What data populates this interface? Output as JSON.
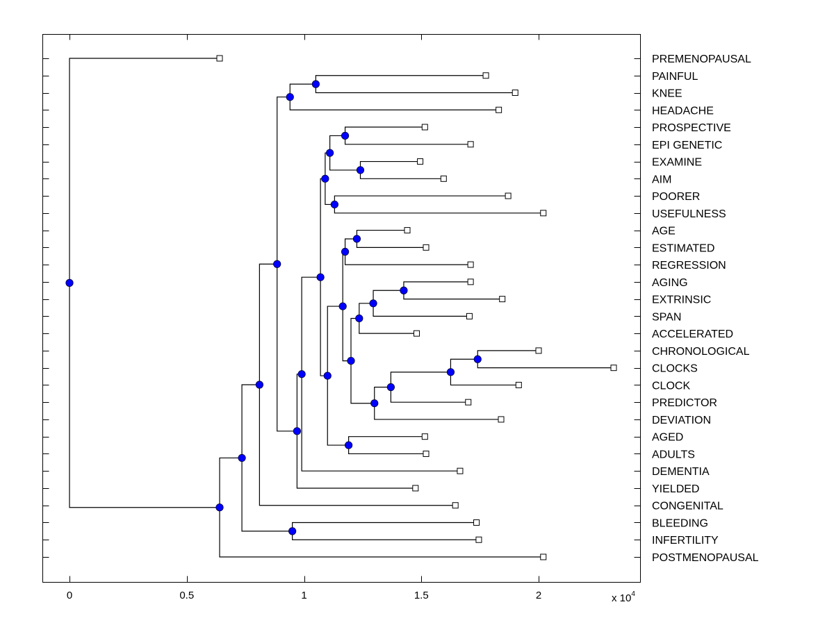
{
  "chart_data": {
    "type": "dendrogram",
    "title": "",
    "xlabel": "",
    "ylabel": "",
    "x_multiplier_label": "x 10",
    "x_multiplier_exponent": "4",
    "xlim": [
      -0.115,
      2.43
    ],
    "xticks": [
      0,
      0.5,
      1,
      1.5,
      2
    ],
    "xtick_labels": [
      "0",
      "0.5",
      "1",
      "1.5",
      "2"
    ],
    "grid": false,
    "internal_node_color": "#0000ff",
    "leaves": [
      {
        "id": "PREMENOPAUSAL",
        "label": "PREMENOPAUSAL",
        "x": 0.64
      },
      {
        "id": "PAINFUL",
        "label": "PAINFUL",
        "x": 1.775
      },
      {
        "id": "KNEE",
        "label": "KNEE",
        "x": 1.9
      },
      {
        "id": "HEADACHE",
        "label": "HEADACHE",
        "x": 1.83
      },
      {
        "id": "PROSPECTIVE",
        "label": "PROSPECTIVE",
        "x": 1.515
      },
      {
        "id": "EPIGENETIC",
        "label": "EPI GENETIC",
        "x": 1.71
      },
      {
        "id": "EXAMINE",
        "label": "EXAMINE",
        "x": 1.495
      },
      {
        "id": "AIM",
        "label": "AIM",
        "x": 1.595
      },
      {
        "id": "POORER",
        "label": "POORER",
        "x": 1.87
      },
      {
        "id": "USEFULNESS",
        "label": "USEFULNESS",
        "x": 2.02
      },
      {
        "id": "AGE",
        "label": "AGE",
        "x": 1.44
      },
      {
        "id": "ESTIMATED",
        "label": "ESTIMATED",
        "x": 1.52
      },
      {
        "id": "REGRESSION",
        "label": "REGRESSION",
        "x": 1.71
      },
      {
        "id": "AGING",
        "label": "AGING",
        "x": 1.71
      },
      {
        "id": "EXTRINSIC",
        "label": "EXTRINSIC",
        "x": 1.845
      },
      {
        "id": "SPAN",
        "label": "SPAN",
        "x": 1.705
      },
      {
        "id": "ACCELERATED",
        "label": "ACCELERATED",
        "x": 1.48
      },
      {
        "id": "CHRONOLOGICAL",
        "label": "CHRONOLOGICAL",
        "x": 2.0
      },
      {
        "id": "CLOCKS",
        "label": "CLOCKS",
        "x": 2.32
      },
      {
        "id": "CLOCK",
        "label": "CLOCK",
        "x": 1.915
      },
      {
        "id": "PREDICTOR",
        "label": "PREDICTOR",
        "x": 1.7
      },
      {
        "id": "DEVIATION",
        "label": "DEVIATION",
        "x": 1.84
      },
      {
        "id": "AGED",
        "label": "AGED",
        "x": 1.515
      },
      {
        "id": "ADULTS",
        "label": "ADULTS",
        "x": 1.52
      },
      {
        "id": "DEMENTIA",
        "label": "DEMENTIA",
        "x": 1.665
      },
      {
        "id": "YIELDED",
        "label": "YIELDED",
        "x": 1.475
      },
      {
        "id": "CONGENITAL",
        "label": "CONGENITAL",
        "x": 1.645
      },
      {
        "id": "BLEEDING",
        "label": "BLEEDING",
        "x": 1.735
      },
      {
        "id": "INFERTILITY",
        "label": "INFERTILITY",
        "x": 1.745
      },
      {
        "id": "POSTMENOPAUSAL",
        "label": "POSTMENOPAUSAL",
        "x": 2.02
      }
    ],
    "internal_nodes": [
      {
        "id": "n_root",
        "x": 0.0,
        "children": [
          "PREMENOPAUSAL",
          "n_A"
        ]
      },
      {
        "id": "n_A",
        "x": 0.64,
        "children": [
          "n_B",
          "POSTMENOPAUSAL"
        ]
      },
      {
        "id": "n_B",
        "x": 0.735,
        "children": [
          "n_C",
          "n_D"
        ]
      },
      {
        "id": "n_D",
        "x": 0.95,
        "children": [
          "BLEEDING",
          "INFERTILITY"
        ]
      },
      {
        "id": "n_C",
        "x": 0.81,
        "children": [
          "n_E",
          "CONGENITAL"
        ]
      },
      {
        "id": "n_E",
        "x": 0.885,
        "children": [
          "n_F",
          "n_G"
        ]
      },
      {
        "id": "n_F",
        "x": 0.94,
        "children": [
          "n_H",
          "HEADACHE"
        ]
      },
      {
        "id": "n_H",
        "x": 1.05,
        "children": [
          "PAINFUL",
          "KNEE"
        ]
      },
      {
        "id": "n_G",
        "x": 0.97,
        "children": [
          "n_I",
          "YIELDED"
        ]
      },
      {
        "id": "n_I",
        "x": 0.99,
        "children": [
          "n_J",
          "DEMENTIA"
        ]
      },
      {
        "id": "n_J",
        "x": 1.07,
        "children": [
          "n_K",
          "n_L"
        ]
      },
      {
        "id": "n_K",
        "x": 1.09,
        "children": [
          "n_M",
          "n_N"
        ]
      },
      {
        "id": "n_M",
        "x": 1.11,
        "children": [
          "n_O",
          "n_P"
        ]
      },
      {
        "id": "n_O",
        "x": 1.175,
        "children": [
          "PROSPECTIVE",
          "EPIGENETIC"
        ]
      },
      {
        "id": "n_P",
        "x": 1.24,
        "children": [
          "EXAMINE",
          "AIM"
        ]
      },
      {
        "id": "n_N",
        "x": 1.13,
        "children": [
          "POORER",
          "USEFULNESS"
        ]
      },
      {
        "id": "n_L",
        "x": 1.1,
        "children": [
          "n_Q",
          "n_R"
        ]
      },
      {
        "id": "n_R",
        "x": 1.19,
        "children": [
          "AGED",
          "ADULTS"
        ]
      },
      {
        "id": "n_Q",
        "x": 1.165,
        "children": [
          "n_S",
          "n_T"
        ]
      },
      {
        "id": "n_S",
        "x": 1.175,
        "children": [
          "n_U",
          "REGRESSION"
        ]
      },
      {
        "id": "n_U",
        "x": 1.225,
        "children": [
          "AGE",
          "ESTIMATED"
        ]
      },
      {
        "id": "n_T",
        "x": 1.2,
        "children": [
          "n_V",
          "n_W"
        ]
      },
      {
        "id": "n_V",
        "x": 1.235,
        "children": [
          "n_X",
          "ACCELERATED"
        ]
      },
      {
        "id": "n_X",
        "x": 1.295,
        "children": [
          "n_Y",
          "SPAN"
        ]
      },
      {
        "id": "n_Y",
        "x": 1.425,
        "children": [
          "AGING",
          "EXTRINSIC"
        ]
      },
      {
        "id": "n_W",
        "x": 1.3,
        "children": [
          "n_Z",
          "DEVIATION"
        ]
      },
      {
        "id": "n_Z",
        "x": 1.37,
        "children": [
          "n_AA",
          "PREDICTOR"
        ]
      },
      {
        "id": "n_AA",
        "x": 1.625,
        "children": [
          "n_BB",
          "CLOCK"
        ]
      },
      {
        "id": "n_BB",
        "x": 1.74,
        "children": [
          "CHRONOLOGICAL",
          "CLOCKS"
        ]
      }
    ]
  }
}
